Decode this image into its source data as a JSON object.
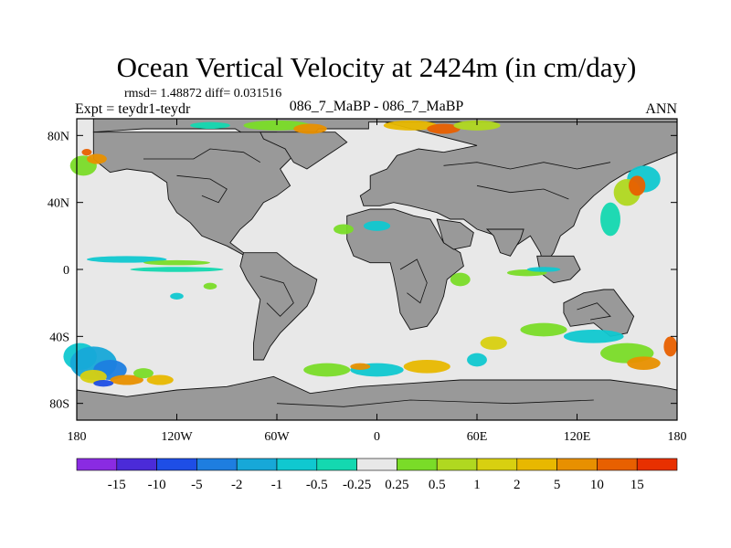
{
  "chart_data": {
    "type": "heatmap",
    "title": "Ocean Vertical Velocity at 2424m (in cm/day)",
    "stats": "rmsd= 1.48872 diff= 0.031516",
    "left_label": "Expt = teydr1-teydr",
    "center_label": "086_7_MaBP - 086_7_MaBP",
    "right_label": "ANN",
    "x_ticks": [
      {
        "value": -180,
        "label": "180"
      },
      {
        "value": -120,
        "label": "120W"
      },
      {
        "value": -60,
        "label": "60W"
      },
      {
        "value": 0,
        "label": "0"
      },
      {
        "value": 60,
        "label": "60E"
      },
      {
        "value": 120,
        "label": "120E"
      },
      {
        "value": 180,
        "label": "180"
      }
    ],
    "y_ticks": [
      {
        "value": 80,
        "label": "80N"
      },
      {
        "value": 40,
        "label": "40N"
      },
      {
        "value": 0,
        "label": "0"
      },
      {
        "value": -40,
        "label": "40S"
      },
      {
        "value": -80,
        "label": "80S"
      }
    ],
    "xlim": [
      -180,
      180
    ],
    "ylim": [
      -90,
      90
    ],
    "colorbar": {
      "colors": [
        "#8a2be2",
        "#4b2bd8",
        "#1e4ee6",
        "#1e7ee0",
        "#17a8d8",
        "#10c8d0",
        "#14d8b0",
        "#e8e8e8",
        "#7adc28",
        "#b0d820",
        "#d8d010",
        "#e8b800",
        "#e89000",
        "#e86000",
        "#e83000"
      ],
      "labels": [
        "-15",
        "-10",
        "-5",
        "-2",
        "-1",
        "-0.5",
        "-0.25",
        "0.25",
        "0.5",
        "1",
        "2",
        "5",
        "10",
        "15"
      ]
    },
    "colors": {
      "land": "#999999",
      "neutral": "#e8e8e8"
    }
  }
}
